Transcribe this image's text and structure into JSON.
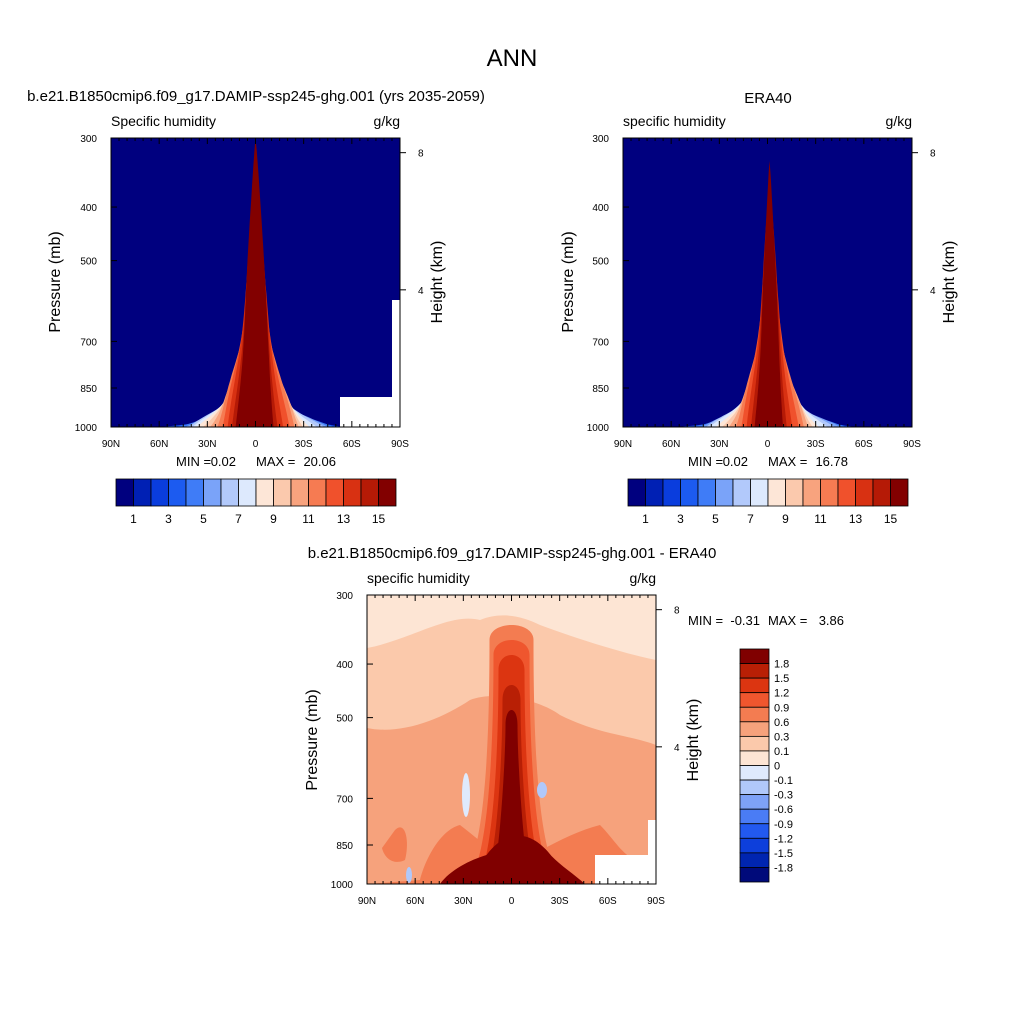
{
  "figure": {
    "title": "ANN"
  },
  "palettes": {
    "abs": [
      "#00007f",
      "#0020b4",
      "#0a3ddd",
      "#1c5bf0",
      "#3f7cf7",
      "#7aa3f9",
      "#b2c9fb",
      "#dde9fd",
      "#fde6d7",
      "#fbc9ad",
      "#f8a37e",
      "#f67b52",
      "#f0512c",
      "#d83112",
      "#b51a06",
      "#820000"
    ],
    "diff": [
      "#000a7a",
      "#0025b0",
      "#0d3fdb",
      "#2259ef",
      "#4a7cf5",
      "#7ea2f7",
      "#b0c8fa",
      "#dfeafd",
      "#fde5d4",
      "#fbc9ab",
      "#f6a27c",
      "#f37c51",
      "#ef562e",
      "#dc3511",
      "#b81f05",
      "#800000"
    ]
  },
  "chart_data": [
    {
      "type": "heatmap",
      "title": "b.e21.B1850cmip6.f09_g17.DAMIP-ssp245-ghg.001 (yrs 2035-2059)",
      "left_label": "Specific humidity",
      "right_label": "g/kg",
      "ylabel": "Pressure (mb)",
      "ylabel_right": "Height (km)",
      "x_ticks": [
        "90N",
        "60N",
        "30N",
        "0",
        "30S",
        "60S",
        "90S"
      ],
      "y_ticks": [
        "300",
        "400",
        "500",
        "700",
        "850",
        "1000"
      ],
      "y_ticks_right": [
        "8",
        "4"
      ],
      "xlim": [
        90,
        -90
      ],
      "ylim": [
        1000,
        300
      ],
      "stats": {
        "min_label": "MIN =",
        "min": "0.02",
        "max_label": "MAX =",
        "max": "20.06"
      },
      "colorbar_labels": [
        "1",
        "3",
        "5",
        "7",
        "9",
        "11",
        "13",
        "15"
      ],
      "surface_peak_g_per_kg": 20.06,
      "isoline_top_pressure_mb": [
        1000,
        980,
        940,
        900,
        860,
        820,
        780,
        740,
        700,
        650,
        560,
        490,
        400,
        350,
        300
      ],
      "isoline_half_width_at_surface_deg": [
        72,
        66,
        59,
        52,
        46,
        42,
        38,
        35,
        32,
        29,
        25,
        21,
        17,
        14,
        12
      ]
    },
    {
      "type": "heatmap",
      "title": "ERA40",
      "left_label": "specific humidity",
      "right_label": "g/kg",
      "ylabel": "Pressure (mb)",
      "ylabel_right": "Height (km)",
      "x_ticks": [
        "90N",
        "60N",
        "30N",
        "0",
        "30S",
        "60S",
        "90S"
      ],
      "y_ticks": [
        "300",
        "400",
        "500",
        "700",
        "850",
        "1000"
      ],
      "y_ticks_right": [
        "8",
        "4"
      ],
      "xlim": [
        90,
        -90
      ],
      "ylim": [
        1000,
        300
      ],
      "stats": {
        "min_label": "MIN =",
        "min": "0.02",
        "max_label": "MAX =",
        "max": "16.78"
      },
      "colorbar_labels": [
        "1",
        "3",
        "5",
        "7",
        "9",
        "11",
        "13",
        "15"
      ],
      "surface_peak_g_per_kg": 16.78,
      "isoline_top_pressure_mb": [
        1000,
        985,
        950,
        910,
        870,
        830,
        790,
        755,
        715,
        670,
        580,
        500,
        420,
        360,
        330
      ],
      "isoline_half_width_at_surface_deg": [
        72,
        65,
        58,
        51,
        45,
        40,
        36,
        32,
        29,
        26,
        22,
        18,
        14,
        11,
        9
      ]
    },
    {
      "type": "heatmap",
      "title": "b.e21.B1850cmip6.f09_g17.DAMIP-ssp245-ghg.001 - ERA40",
      "left_label": "specific humidity",
      "right_label": "g/kg",
      "ylabel": "Pressure (mb)",
      "ylabel_right": "Height (km)",
      "x_ticks": [
        "90N",
        "60N",
        "30N",
        "0",
        "30S",
        "60S",
        "90S"
      ],
      "y_ticks": [
        "300",
        "400",
        "500",
        "700",
        "850",
        "1000"
      ],
      "y_ticks_right": [
        "8",
        "4"
      ],
      "xlim": [
        90,
        -90
      ],
      "ylim": [
        1000,
        300
      ],
      "stats": {
        "min_label": "MIN =",
        "min": "-0.31",
        "max_label": "MAX =",
        "max": "3.86"
      },
      "colorbar_labels": [
        "1.8",
        "1.5",
        "1.2",
        "0.9",
        "0.6",
        "0.3",
        "0.1",
        "0",
        "-0.1",
        "-0.3",
        "-0.6",
        "-0.9",
        "-1.2",
        "-1.5",
        "-1.8"
      ],
      "colorbar_levels": [
        -1.8,
        -1.5,
        -1.2,
        -0.9,
        -0.6,
        -0.3,
        -0.1,
        0,
        0.1,
        0.3,
        0.6,
        0.9,
        1.2,
        1.5,
        1.8
      ]
    }
  ]
}
